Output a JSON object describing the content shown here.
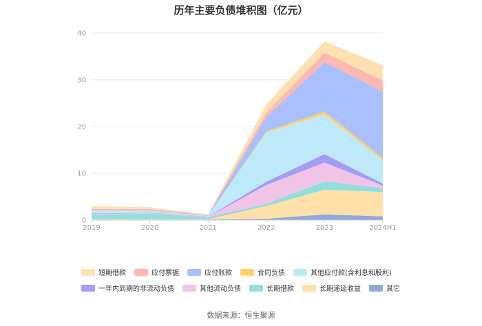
{
  "chart_data": {
    "type": "area",
    "stacked": true,
    "title": "历年主要负债堆积图（亿元）",
    "x": [
      "2019",
      "2020",
      "2021",
      "2022",
      "2023",
      "2024H1"
    ],
    "ylim": [
      0,
      40
    ],
    "yticks": [
      0,
      10,
      20,
      30,
      40
    ],
    "grid": true,
    "legend_position": "bottom",
    "series": [
      {
        "name": "其它",
        "color": "#8eaadb",
        "values": [
          0.1,
          0.1,
          0.1,
          0.3,
          1.2,
          0.8
        ]
      },
      {
        "name": "长期递延收益",
        "color": "#ffe0a8",
        "values": [
          0.1,
          0.1,
          0.1,
          2.7,
          5.3,
          5.2
        ]
      },
      {
        "name": "长期借款",
        "color": "#90dede",
        "values": [
          0.9,
          1.2,
          0.4,
          0.5,
          1.8,
          0.8
        ]
      },
      {
        "name": "其他流动负债",
        "color": "#efc4e6",
        "values": [
          0.2,
          0.1,
          0.1,
          4.0,
          4.0,
          0.6
        ]
      },
      {
        "name": "一年内到期的非流动负债",
        "color": "#a29cf5",
        "values": [
          0.1,
          0.1,
          0.05,
          0.7,
          1.8,
          0.4
        ]
      },
      {
        "name": "其他应付款(含利息和股利)",
        "color": "#bde9fb",
        "values": [
          0.6,
          0.4,
          0.1,
          10.5,
          8.5,
          5.0
        ]
      },
      {
        "name": "合同负债",
        "color": "#ffd166",
        "values": [
          0.1,
          0.05,
          0.05,
          0.3,
          0.6,
          0.5
        ]
      },
      {
        "name": "应付账款",
        "color": "#aabffd",
        "values": [
          0.1,
          0.1,
          0.1,
          3.0,
          10.6,
          14.2
        ]
      },
      {
        "name": "应付票据",
        "color": "#ffb8b0",
        "values": [
          0.2,
          0.2,
          0.1,
          1.0,
          2.0,
          2.4
        ]
      },
      {
        "name": "短期借款",
        "color": "#ffe0b0",
        "values": [
          0.6,
          0.4,
          0.1,
          1.8,
          2.4,
          3.2
        ]
      }
    ]
  },
  "legend_order": [
    "短期借款",
    "应付票据",
    "应付账款",
    "合同负债",
    "其他应付款(含利息和股利)",
    "一年内到期的非流动负债",
    "其他流动负债",
    "长期借款",
    "长期递延收益",
    "其它"
  ],
  "source": "数据来源：恒生聚源"
}
